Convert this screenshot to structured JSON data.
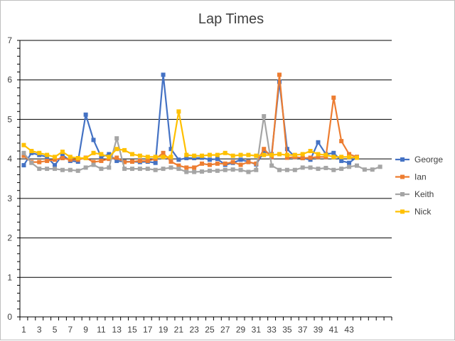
{
  "chart_data": {
    "type": "line",
    "title": "Lap Times",
    "xlabel": "",
    "ylabel": "",
    "ylim": [
      0,
      7
    ],
    "y_ticks": [
      0,
      1,
      2,
      3,
      4,
      5,
      6,
      7
    ],
    "x_tick_labels": [
      "1",
      "3",
      "5",
      "7",
      "9",
      "11",
      "13",
      "15",
      "17",
      "19",
      "21",
      "23",
      "25",
      "27",
      "29",
      "31",
      "33",
      "35",
      "37",
      "39",
      "41",
      "43"
    ],
    "grid": "horizontal major gridlines",
    "legend_position": "right",
    "x": [
      1,
      2,
      3,
      4,
      5,
      6,
      7,
      8,
      9,
      10,
      11,
      12,
      13,
      14,
      15,
      16,
      17,
      18,
      19,
      20,
      21,
      22,
      23,
      24,
      25,
      26,
      27,
      28,
      29,
      30,
      31,
      32,
      33,
      34,
      35,
      36,
      37,
      38,
      39,
      40,
      41,
      42,
      43,
      44,
      45,
      46,
      47,
      48
    ],
    "series": [
      {
        "name": "George",
        "color": "#4472C4",
        "values": [
          3.84,
          4.15,
          4.1,
          4.05,
          3.84,
          4.1,
          3.95,
          3.93,
          5.12,
          4.48,
          4.05,
          4.12,
          3.95,
          3.93,
          3.93,
          3.92,
          3.93,
          3.9,
          6.13,
          4.25,
          3.98,
          4.02,
          4.02,
          4.03,
          3.98,
          4.0,
          3.85,
          3.9,
          3.98,
          3.93,
          3.86,
          4.18,
          4.12,
          5.95,
          4.25,
          4.05,
          4.02,
          3.98,
          4.42,
          4.12,
          4.15,
          3.95,
          3.9,
          4.05,
          null,
          null,
          null,
          null
        ]
      },
      {
        "name": "Ian",
        "color": "#ED7D31",
        "values": [
          4.08,
          3.92,
          3.92,
          3.95,
          3.98,
          4.02,
          3.98,
          3.98,
          4.03,
          3.92,
          3.95,
          4.0,
          4.03,
          3.92,
          3.93,
          3.95,
          3.95,
          4.0,
          4.15,
          3.93,
          3.83,
          3.78,
          3.78,
          3.88,
          3.85,
          3.88,
          3.88,
          3.92,
          3.85,
          3.92,
          3.88,
          4.25,
          4.05,
          6.13,
          4.03,
          4.05,
          4.02,
          4.03,
          4.05,
          4.05,
          5.55,
          4.45,
          4.12,
          4.05,
          null,
          null,
          null,
          null
        ]
      },
      {
        "name": "Keith",
        "color": "#A5A5A5",
        "values": [
          4.15,
          3.9,
          3.75,
          3.75,
          3.75,
          3.72,
          3.72,
          3.7,
          3.78,
          3.85,
          3.75,
          3.78,
          4.52,
          3.75,
          3.75,
          3.75,
          3.75,
          3.72,
          3.75,
          3.78,
          3.75,
          3.67,
          3.67,
          3.68,
          3.7,
          3.7,
          3.72,
          3.73,
          3.72,
          3.67,
          3.72,
          5.08,
          3.83,
          3.72,
          3.72,
          3.72,
          3.78,
          3.78,
          3.75,
          3.77,
          3.72,
          3.75,
          3.8,
          3.83,
          3.73,
          3.73,
          3.8,
          null
        ]
      },
      {
        "name": "Nick",
        "color": "#FFC000",
        "values": [
          4.35,
          4.2,
          4.15,
          4.1,
          4.05,
          4.18,
          4.05,
          4.02,
          4.02,
          4.15,
          4.12,
          4.05,
          4.25,
          4.22,
          4.12,
          4.08,
          4.05,
          4.05,
          4.05,
          4.05,
          5.2,
          4.1,
          4.08,
          4.08,
          4.1,
          4.1,
          4.15,
          4.08,
          4.1,
          4.1,
          4.08,
          4.1,
          4.1,
          4.12,
          4.1,
          4.1,
          4.12,
          4.2,
          4.12,
          4.1,
          4.05,
          4.05,
          4.05,
          4.03,
          null,
          null,
          null,
          null
        ]
      }
    ]
  }
}
